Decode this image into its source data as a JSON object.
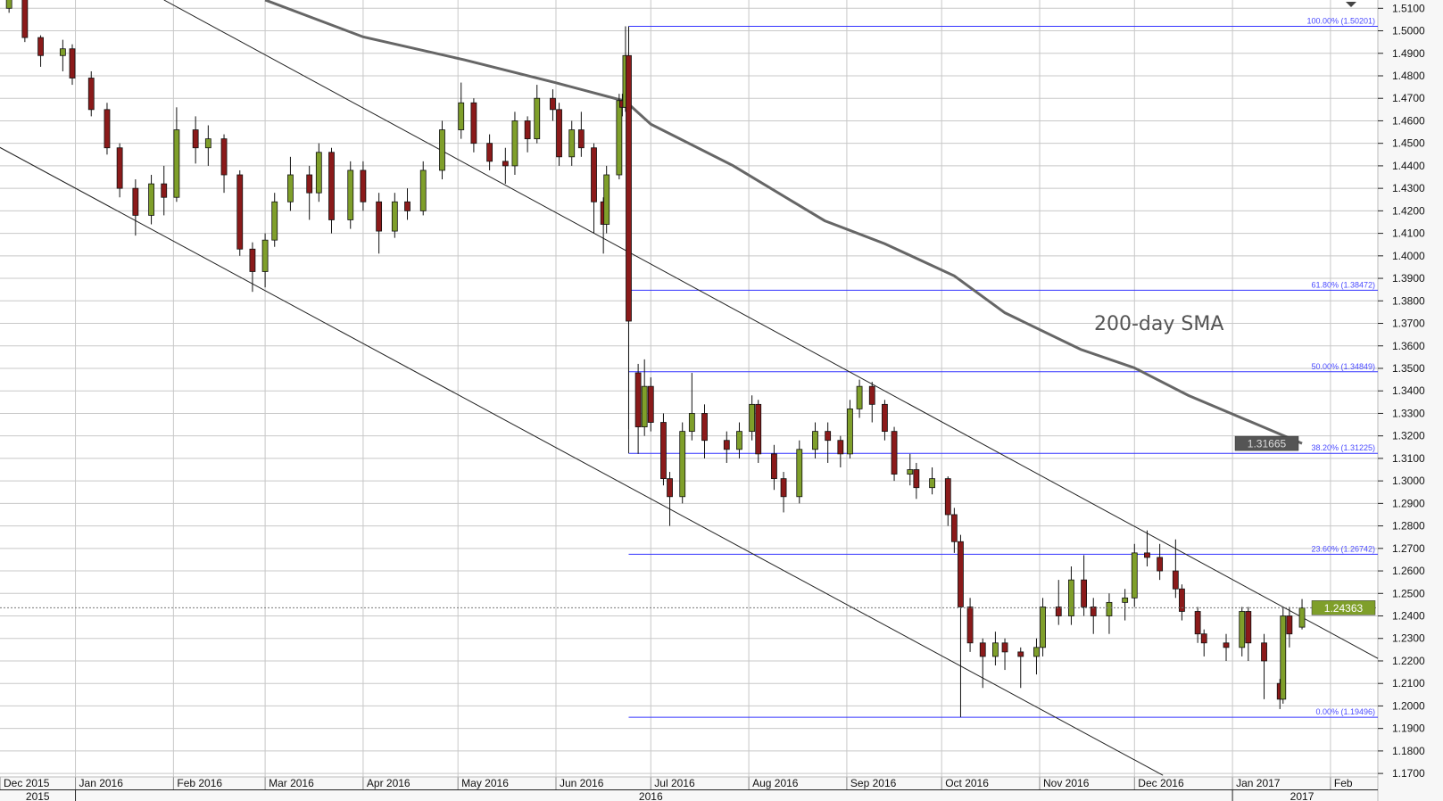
{
  "chart_data": {
    "type": "candlestick",
    "title": "",
    "ylim": [
      1.17,
      1.51
    ],
    "y_ticks": [
      "1.5100",
      "1.5000",
      "1.4900",
      "1.4800",
      "1.4700",
      "1.4600",
      "1.4500",
      "1.4400",
      "1.4300",
      "1.4200",
      "1.4100",
      "1.4000",
      "1.3900",
      "1.3800",
      "1.3700",
      "1.3600",
      "1.3500",
      "1.3400",
      "1.3300",
      "1.3200",
      "1.3100",
      "1.3000",
      "1.2900",
      "1.2800",
      "1.2700",
      "1.2600",
      "1.2500",
      "1.2400",
      "1.2300",
      "1.2200",
      "1.2100",
      "1.2000",
      "1.1900",
      "1.1800",
      "1.1700"
    ],
    "x_months": [
      {
        "date": "2015-12-01",
        "label": "Dec 2015"
      },
      {
        "date": "2016-01-01",
        "label": "Jan 2016"
      },
      {
        "date": "2016-02-01",
        "label": "Feb 2016"
      },
      {
        "date": "2016-03-01",
        "label": "Mar 2016"
      },
      {
        "date": "2016-04-01",
        "label": "Apr 2016"
      },
      {
        "date": "2016-05-01",
        "label": "May 2016"
      },
      {
        "date": "2016-06-01",
        "label": "Jun 2016"
      },
      {
        "date": "2016-07-01",
        "label": "Jul 2016"
      },
      {
        "date": "2016-08-01",
        "label": "Aug 2016"
      },
      {
        "date": "2016-09-01",
        "label": "Sep 2016"
      },
      {
        "date": "2016-10-01",
        "label": "Oct 2016"
      },
      {
        "date": "2016-11-01",
        "label": "Nov 2016"
      },
      {
        "date": "2016-12-01",
        "label": "Dec 2016"
      },
      {
        "date": "2017-01-01",
        "label": "Jan 2017"
      },
      {
        "date": "2017-02-01",
        "label": "Feb"
      }
    ],
    "x_years": [
      {
        "label": "2015",
        "from": "2015-12-01",
        "to": "2016-01-01"
      },
      {
        "label": "2016",
        "from": "2016-01-01",
        "to": "2017-01-01"
      },
      {
        "label": "2017",
        "from": "2017-01-01",
        "to": "2017-02-01"
      }
    ],
    "grid": true,
    "colors": {
      "up": "#7f9f2a",
      "down": "#8b1a1a",
      "grid": "#c8c8c8",
      "fib": "#3333ff",
      "sma": "#666666",
      "last_tag": "#7f9f2a",
      "sma_tag": "#555555"
    },
    "candles_columns": [
      "date",
      "open",
      "high",
      "low",
      "close"
    ],
    "candles": [
      [
        "2015-12-07",
        1.515,
        1.52,
        1.505,
        1.51
      ],
      [
        "2015-12-11",
        1.51,
        1.522,
        1.508,
        1.514
      ],
      [
        "2015-12-16",
        1.514,
        1.516,
        1.495,
        1.497
      ],
      [
        "2015-12-21",
        1.497,
        1.498,
        1.484,
        1.489
      ],
      [
        "2015-12-28",
        1.489,
        1.496,
        1.482,
        1.492
      ],
      [
        "2015-12-31",
        1.492,
        1.494,
        1.476,
        1.479
      ],
      [
        "2016-01-06",
        1.479,
        1.482,
        1.462,
        1.465
      ],
      [
        "2016-01-11",
        1.465,
        1.468,
        1.445,
        1.448
      ],
      [
        "2016-01-15",
        1.448,
        1.45,
        1.426,
        1.43
      ],
      [
        "2016-01-20",
        1.43,
        1.434,
        1.409,
        1.418
      ],
      [
        "2016-01-25",
        1.418,
        1.436,
        1.414,
        1.432
      ],
      [
        "2016-01-29",
        1.432,
        1.44,
        1.418,
        1.426
      ],
      [
        "2016-02-02",
        1.426,
        1.466,
        1.424,
        1.456
      ],
      [
        "2016-02-08",
        1.456,
        1.462,
        1.441,
        1.448
      ],
      [
        "2016-02-12",
        1.448,
        1.458,
        1.44,
        1.452
      ],
      [
        "2016-02-17",
        1.452,
        1.454,
        1.428,
        1.436
      ],
      [
        "2016-02-22",
        1.436,
        1.438,
        1.4,
        1.403
      ],
      [
        "2016-02-26",
        1.403,
        1.406,
        1.384,
        1.393
      ],
      [
        "2016-03-01",
        1.393,
        1.41,
        1.386,
        1.407
      ],
      [
        "2016-03-04",
        1.407,
        1.428,
        1.404,
        1.424
      ],
      [
        "2016-03-09",
        1.424,
        1.444,
        1.42,
        1.436
      ],
      [
        "2016-03-15",
        1.436,
        1.44,
        1.416,
        1.428
      ],
      [
        "2016-03-18",
        1.428,
        1.45,
        1.424,
        1.446
      ],
      [
        "2016-03-22",
        1.446,
        1.448,
        1.41,
        1.416
      ],
      [
        "2016-03-28",
        1.416,
        1.442,
        1.412,
        1.438
      ],
      [
        "2016-04-01",
        1.438,
        1.442,
        1.42,
        1.424
      ],
      [
        "2016-04-06",
        1.424,
        1.428,
        1.401,
        1.411
      ],
      [
        "2016-04-11",
        1.411,
        1.428,
        1.408,
        1.424
      ],
      [
        "2016-04-15",
        1.424,
        1.43,
        1.416,
        1.42
      ],
      [
        "2016-04-20",
        1.42,
        1.442,
        1.418,
        1.438
      ],
      [
        "2016-04-26",
        1.438,
        1.46,
        1.434,
        1.456
      ],
      [
        "2016-05-02",
        1.456,
        1.477,
        1.452,
        1.468
      ],
      [
        "2016-05-06",
        1.468,
        1.47,
        1.446,
        1.45
      ],
      [
        "2016-05-11",
        1.45,
        1.454,
        1.438,
        1.442
      ],
      [
        "2016-05-16",
        1.442,
        1.448,
        1.432,
        1.44
      ],
      [
        "2016-05-19",
        1.44,
        1.464,
        1.436,
        1.46
      ],
      [
        "2016-05-23",
        1.46,
        1.462,
        1.446,
        1.452
      ],
      [
        "2016-05-26",
        1.452,
        1.476,
        1.45,
        1.47
      ],
      [
        "2016-05-31",
        1.47,
        1.474,
        1.46,
        1.465
      ],
      [
        "2016-06-02",
        1.465,
        1.468,
        1.44,
        1.444
      ],
      [
        "2016-06-06",
        1.444,
        1.46,
        1.44,
        1.456
      ],
      [
        "2016-06-09",
        1.456,
        1.464,
        1.444,
        1.448
      ],
      [
        "2016-06-13",
        1.448,
        1.45,
        1.41,
        1.424
      ],
      [
        "2016-06-16",
        1.424,
        1.426,
        1.401,
        1.414
      ],
      [
        "2016-06-17",
        1.414,
        1.44,
        1.41,
        1.436
      ],
      [
        "2016-06-21",
        1.436,
        1.472,
        1.434,
        1.469
      ],
      [
        "2016-06-22",
        1.469,
        1.472,
        1.462,
        1.466
      ],
      [
        "2016-06-23",
        1.466,
        1.502,
        1.464,
        1.489
      ],
      [
        "2016-06-24",
        1.489,
        1.502,
        1.3229,
        1.371
      ],
      [
        "2016-06-27",
        1.348,
        1.352,
        1.312,
        1.324
      ],
      [
        "2016-06-29",
        1.324,
        1.354,
        1.32,
        1.342
      ],
      [
        "2016-07-01",
        1.342,
        1.346,
        1.322,
        1.326
      ],
      [
        "2016-07-05",
        1.326,
        1.33,
        1.298,
        1.301
      ],
      [
        "2016-07-07",
        1.301,
        1.304,
        1.28,
        1.293
      ],
      [
        "2016-07-11",
        1.293,
        1.326,
        1.29,
        1.322
      ],
      [
        "2016-07-14",
        1.322,
        1.348,
        1.318,
        1.33
      ],
      [
        "2016-07-18",
        1.33,
        1.334,
        1.31,
        1.318
      ],
      [
        "2016-07-25",
        1.318,
        1.322,
        1.308,
        1.314
      ],
      [
        "2016-07-29",
        1.314,
        1.326,
        1.31,
        1.322
      ],
      [
        "2016-08-02",
        1.322,
        1.338,
        1.318,
        1.334
      ],
      [
        "2016-08-04",
        1.334,
        1.336,
        1.308,
        1.312
      ],
      [
        "2016-08-09",
        1.312,
        1.316,
        1.296,
        1.301
      ],
      [
        "2016-08-12",
        1.301,
        1.304,
        1.286,
        1.293
      ],
      [
        "2016-08-17",
        1.293,
        1.318,
        1.29,
        1.314
      ],
      [
        "2016-08-22",
        1.314,
        1.326,
        1.31,
        1.322
      ],
      [
        "2016-08-26",
        1.322,
        1.326,
        1.308,
        1.318
      ],
      [
        "2016-08-30",
        1.318,
        1.32,
        1.306,
        1.312
      ],
      [
        "2016-09-02",
        1.312,
        1.336,
        1.31,
        1.332
      ],
      [
        "2016-09-05",
        1.332,
        1.345,
        1.328,
        1.342
      ],
      [
        "2016-09-09",
        1.342,
        1.344,
        1.326,
        1.334
      ],
      [
        "2016-09-13",
        1.334,
        1.336,
        1.318,
        1.322
      ],
      [
        "2016-09-16",
        1.322,
        1.324,
        1.3,
        1.303
      ],
      [
        "2016-09-21",
        1.303,
        1.312,
        1.298,
        1.305
      ],
      [
        "2016-09-23",
        1.305,
        1.308,
        1.292,
        1.297
      ],
      [
        "2016-09-28",
        1.297,
        1.306,
        1.294,
        1.301
      ],
      [
        "2016-10-03",
        1.301,
        1.302,
        1.28,
        1.285
      ],
      [
        "2016-10-05",
        1.285,
        1.288,
        1.268,
        1.273
      ],
      [
        "2016-10-07",
        1.273,
        1.276,
        1.195,
        1.244
      ],
      [
        "2016-10-10",
        1.244,
        1.248,
        1.224,
        1.228
      ],
      [
        "2016-10-14",
        1.228,
        1.23,
        1.208,
        1.222
      ],
      [
        "2016-10-18",
        1.222,
        1.233,
        1.218,
        1.228
      ],
      [
        "2016-10-21",
        1.228,
        1.23,
        1.216,
        1.224
      ],
      [
        "2016-10-26",
        1.224,
        1.226,
        1.208,
        1.222
      ],
      [
        "2016-10-31",
        1.222,
        1.23,
        1.214,
        1.226
      ],
      [
        "2016-11-02",
        1.226,
        1.248,
        1.222,
        1.244
      ],
      [
        "2016-11-07",
        1.244,
        1.256,
        1.236,
        1.24
      ],
      [
        "2016-11-11",
        1.24,
        1.262,
        1.236,
        1.256
      ],
      [
        "2016-11-15",
        1.256,
        1.267,
        1.24,
        1.244
      ],
      [
        "2016-11-18",
        1.244,
        1.248,
        1.232,
        1.24
      ],
      [
        "2016-11-23",
        1.24,
        1.25,
        1.232,
        1.246
      ],
      [
        "2016-11-28",
        1.246,
        1.252,
        1.238,
        1.248
      ],
      [
        "2016-12-01",
        1.248,
        1.272,
        1.244,
        1.268
      ],
      [
        "2016-12-05",
        1.268,
        1.278,
        1.262,
        1.266
      ],
      [
        "2016-12-09",
        1.266,
        1.272,
        1.256,
        1.26
      ],
      [
        "2016-12-14",
        1.26,
        1.274,
        1.248,
        1.252
      ],
      [
        "2016-12-16",
        1.252,
        1.254,
        1.238,
        1.242
      ],
      [
        "2016-12-21",
        1.242,
        1.244,
        1.228,
        1.232
      ],
      [
        "2016-12-23",
        1.232,
        1.234,
        1.222,
        1.228
      ],
      [
        "2016-12-30",
        1.228,
        1.232,
        1.22,
        1.226
      ],
      [
        "2017-01-04",
        1.226,
        1.244,
        1.222,
        1.242
      ],
      [
        "2017-01-06",
        1.242,
        1.244,
        1.22,
        1.228
      ],
      [
        "2017-01-11",
        1.228,
        1.232,
        1.203,
        1.22
      ],
      [
        "2017-01-16",
        1.21,
        1.212,
        1.1986,
        1.203
      ],
      [
        "2017-01-17",
        1.203,
        1.244,
        1.201,
        1.24
      ],
      [
        "2017-01-19",
        1.24,
        1.244,
        1.226,
        1.232
      ],
      [
        "2017-01-23",
        1.235,
        1.2475,
        1.234,
        1.2436
      ]
    ],
    "sma_200": {
      "label": "200-day SMA",
      "points": [
        [
          "2016-03-01",
          1.5137
        ],
        [
          "2016-04-01",
          1.4973
        ],
        [
          "2016-05-03",
          1.4871
        ],
        [
          "2016-06-01",
          1.4769
        ],
        [
          "2016-06-23",
          1.4687
        ],
        [
          "2016-07-01",
          1.4585
        ],
        [
          "2016-07-27",
          1.4401
        ],
        [
          "2016-08-25",
          1.4156
        ],
        [
          "2016-09-13",
          1.4054
        ],
        [
          "2016-10-05",
          1.3911
        ],
        [
          "2016-10-21",
          1.3747
        ],
        [
          "2016-11-14",
          1.3584
        ],
        [
          "2016-12-01",
          1.3502
        ],
        [
          "2016-12-18",
          1.338
        ],
        [
          "2017-01-23",
          1.31665
        ]
      ]
    },
    "trendlines": [
      {
        "from": [
          "2016-01-29",
          1.5137
        ],
        "to": [
          "2017-02-16",
          1.2211
        ]
      },
      {
        "from": [
          "2015-12-07",
          1.449
        ],
        "to": [
          "2016-12-10",
          1.1692
        ]
      }
    ],
    "fibonacci": {
      "start_date": "2016-06-24",
      "swing_low_date": "2016-10-07",
      "levels": [
        {
          "label": "100.00% (1.50201)",
          "value": 1.50201
        },
        {
          "label": "61.80% (1.38472)",
          "value": 1.38472
        },
        {
          "label": "50.00% (1.34849)",
          "value": 1.34849
        },
        {
          "label": "38.20% (1.31225)",
          "value": 1.31225
        },
        {
          "label": "23.60% (1.26742)",
          "value": 1.26742
        },
        {
          "label": "0.00% (1.19496)",
          "value": 1.19496
        }
      ]
    },
    "price_tags": [
      {
        "label": "1.31665",
        "value": 1.31665,
        "kind": "sma"
      },
      {
        "label": "1.24363",
        "value": 1.24363,
        "kind": "last"
      }
    ]
  }
}
